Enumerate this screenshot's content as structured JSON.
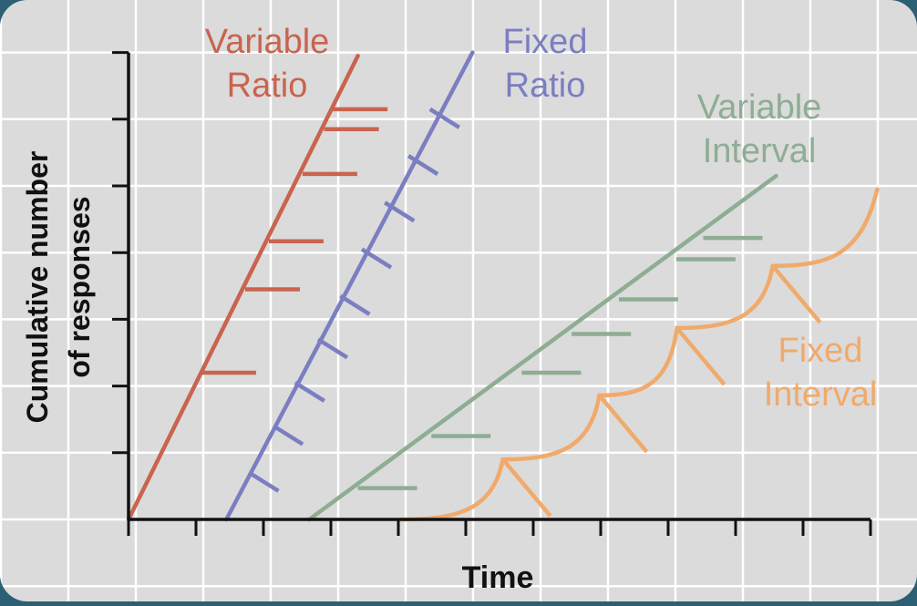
{
  "chart_data": {
    "type": "line",
    "title": "",
    "xlabel": "Time",
    "ylabel_lines": [
      "Cumulative number",
      "of responses"
    ],
    "xlim": [
      0,
      11
    ],
    "ylim": [
      0,
      7
    ],
    "x_ticks": [
      0,
      1,
      2,
      3,
      4,
      5,
      6,
      7,
      8,
      9,
      10,
      11
    ],
    "y_ticks": [
      0,
      1,
      2,
      3,
      4,
      5,
      6,
      7
    ],
    "grid": true,
    "legend": "inline labels beside each curve",
    "series": [
      {
        "name": "Variable Ratio",
        "name_lines": [
          "Variable",
          "Ratio"
        ],
        "color": "#c8644f",
        "points": [
          [
            0,
            0
          ],
          [
            3.4,
            6.95
          ]
        ],
        "reinforcements": [
          [
            1.08,
            2.2
          ],
          [
            1.73,
            3.45
          ],
          [
            2.08,
            4.17
          ],
          [
            2.58,
            5.18
          ],
          [
            2.9,
            5.85
          ],
          [
            3.03,
            6.15
          ]
        ],
        "hatch_direction": "horizontal"
      },
      {
        "name": "Fixed Ratio",
        "name_lines": [
          "Fixed",
          "Ratio"
        ],
        "color": "#7b7ec0",
        "points": [
          [
            1.45,
            0
          ],
          [
            5.1,
            7
          ]
        ],
        "reinforcements": [
          [
            1.79,
            0.7
          ],
          [
            2.15,
            1.4
          ],
          [
            2.47,
            2.05
          ],
          [
            2.81,
            2.7
          ],
          [
            3.14,
            3.35
          ],
          [
            3.46,
            4.05
          ],
          [
            3.8,
            4.75
          ],
          [
            4.15,
            5.45
          ],
          [
            4.47,
            6.15
          ]
        ],
        "hatch_direction": "down-right"
      },
      {
        "name": "Variable Interval",
        "name_lines": [
          "Variable",
          "Interval"
        ],
        "color": "#8ead93",
        "points": [
          [
            2.68,
            0
          ],
          [
            9.6,
            5.15
          ]
        ],
        "reinforcements": [
          [
            3.4,
            0.47
          ],
          [
            4.49,
            1.25
          ],
          [
            5.83,
            2.2
          ],
          [
            6.57,
            2.78
          ],
          [
            7.27,
            3.3
          ],
          [
            8.12,
            3.9
          ],
          [
            8.52,
            4.22
          ]
        ],
        "hatch_direction": "horizontal"
      },
      {
        "name": "Fixed Interval",
        "name_lines": [
          "Fixed",
          "Interval"
        ],
        "color": "#f0aa6b",
        "points": [
          [
            4.05,
            0
          ],
          [
            11.1,
            4.95
          ]
        ],
        "scallop_peaks": [
          [
            5.55,
            0.9
          ],
          [
            6.98,
            1.86
          ],
          [
            8.13,
            2.87
          ],
          [
            9.55,
            3.8
          ]
        ],
        "hatch_direction": "down-right"
      }
    ]
  }
}
